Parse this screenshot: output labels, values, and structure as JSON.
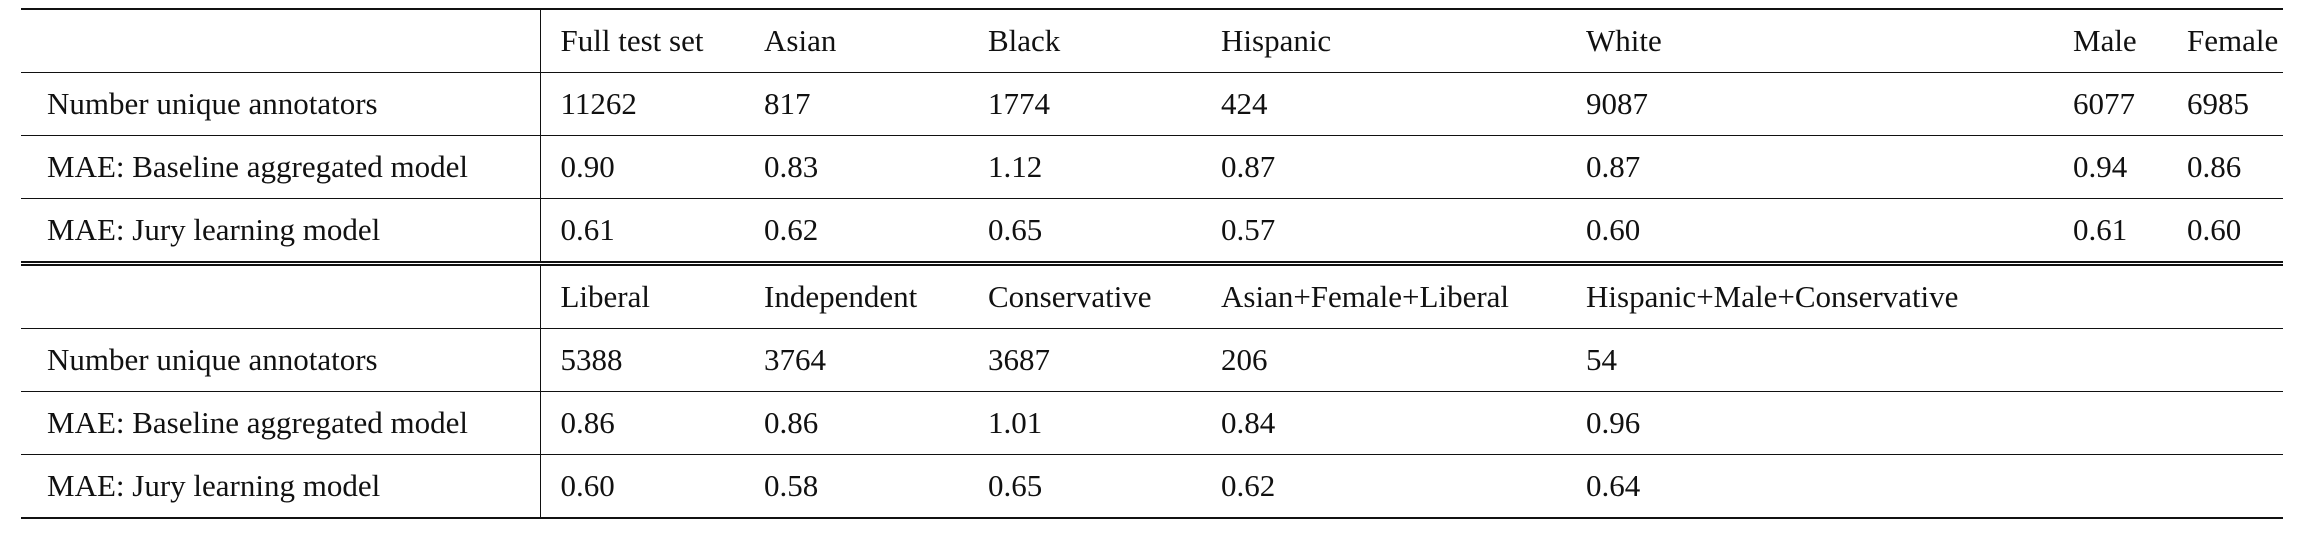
{
  "table": {
    "part1": {
      "header": [
        "",
        "Full test set",
        "Asian",
        "Black",
        "Hispanic",
        "White",
        "Male",
        "Female"
      ],
      "rows": [
        {
          "label": "Number unique annotators",
          "values": [
            "11262",
            "817",
            "1774",
            "424",
            "9087",
            "6077",
            "6985"
          ]
        },
        {
          "label": "MAE: Baseline aggregated model",
          "values": [
            "0.90",
            "0.83",
            "1.12",
            "0.87",
            "0.87",
            "0.94",
            "0.86"
          ]
        },
        {
          "label": "MAE: Jury learning model",
          "values": [
            "0.61",
            "0.62",
            "0.65",
            "0.57",
            "0.60",
            "0.61",
            "0.60"
          ]
        }
      ]
    },
    "part2": {
      "header": [
        "",
        "Liberal",
        "Independent",
        "Conservative",
        "Asian+Female+Liberal",
        "Hispanic+Male+Conservative",
        "",
        ""
      ],
      "rows": [
        {
          "label": "Number unique annotators",
          "values": [
            "5388",
            "3764",
            "3687",
            "206",
            "54",
            "",
            ""
          ]
        },
        {
          "label": "MAE: Baseline aggregated model",
          "values": [
            "0.86",
            "0.86",
            "1.01",
            "0.84",
            "0.96",
            "",
            ""
          ]
        },
        {
          "label": "MAE: Jury learning model",
          "values": [
            "0.60",
            "0.58",
            "0.65",
            "0.62",
            "0.64",
            "",
            ""
          ]
        }
      ]
    }
  }
}
